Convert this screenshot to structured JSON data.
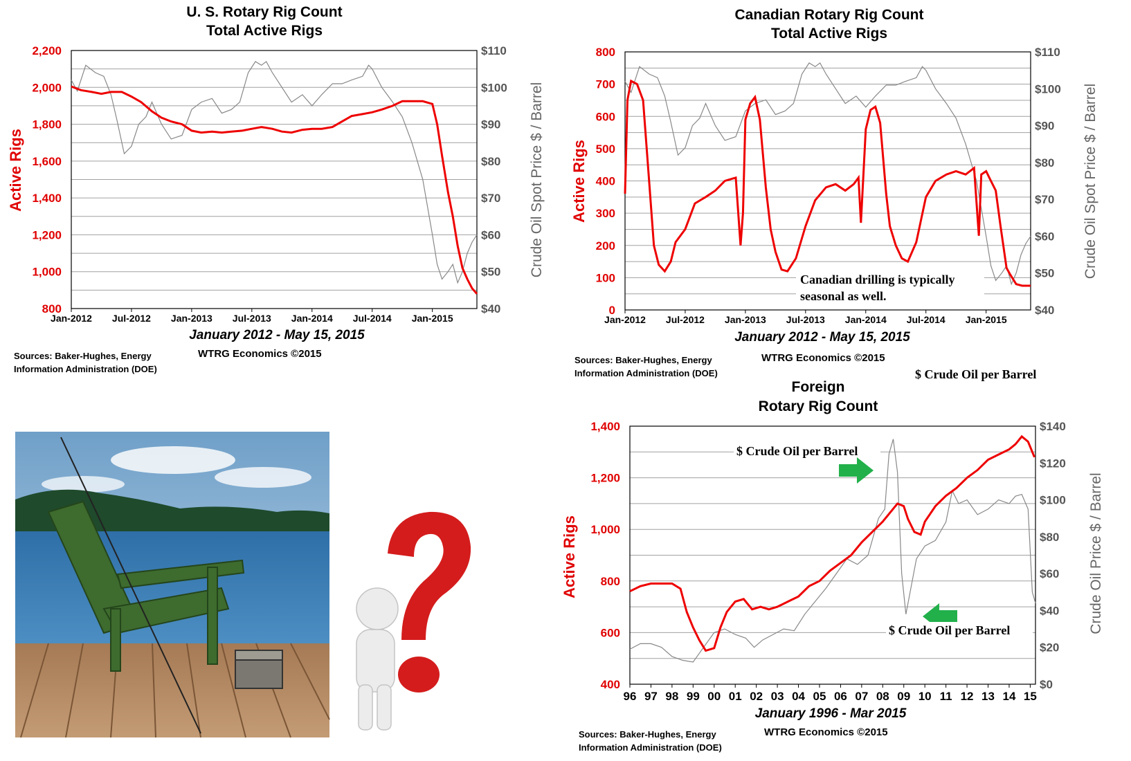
{
  "colors": {
    "rigs": "#ee0000",
    "oil": "#888888",
    "grid": "#a0a0a0",
    "arrow": "#22b04b"
  },
  "us": {
    "title_line1": "U. S. Rotary Rig Count",
    "title_line2": "Total Active Rigs",
    "ylabel": "Active Rigs",
    "y2label": "Crude Oil Spot Price $ / Barrel",
    "period": "January 2012 - May 15, 2015",
    "source_line1": "Sources: Baker-Hughes, Energy",
    "source_line2": "Information Administration (DOE)",
    "credit": "WTRG Economics  ©2015",
    "y_ticks": [
      "800",
      "1,000",
      "1,200",
      "1,400",
      "1,600",
      "1,800",
      "2,000",
      "2,200"
    ],
    "y2_ticks": [
      "$40",
      "$50",
      "$60",
      "$70",
      "$80",
      "$90",
      "$100",
      "$110"
    ],
    "x_ticks": [
      "Jan-2012",
      "Jul-2012",
      "Jan-2013",
      "Jul-2013",
      "Jan-2014",
      "Jul-2014",
      "Jan-2015"
    ]
  },
  "canada": {
    "title_line1": "Canadian Rotary Rig Count",
    "title_line2": "Total Active Rigs",
    "ylabel": "Active Rigs",
    "y2label": "Crude Oil Spot Price $ / Barrel",
    "period": "January 2012 - May 15, 2015",
    "source_line1": "Sources: Baker-Hughes, Energy",
    "source_line2": "Information Administration (DOE)",
    "credit": "WTRG Economics  ©2015",
    "annotation_line1": "Canadian drilling is typically",
    "annotation_line2": "seasonal as well.",
    "y_ticks": [
      "0",
      "100",
      "200",
      "300",
      "400",
      "500",
      "600",
      "700",
      "800"
    ],
    "y2_ticks": [
      "$40",
      "$50",
      "$60",
      "$70",
      "$80",
      "$90",
      "$100",
      "$110"
    ],
    "x_ticks": [
      "Jan-2012",
      "Jul-2012",
      "Jan-2013",
      "Jul-2013",
      "Jan-2014",
      "Jul-2014",
      "Jan-2015"
    ]
  },
  "foreign": {
    "legend_oil": "$ Crude Oil per Barrel",
    "title_line1": "Foreign",
    "title_line2": "Rotary Rig Count",
    "ylabel": "Active Rigs",
    "y2label": "Crude Oil Price $ / Barrel",
    "period": "January 1996 - Mar 2015",
    "source_line1": "Sources: Baker-Hughes, Energy",
    "source_line2": "Information Administration (DOE)",
    "credit": "WTRG Economics  ©2015",
    "annotation_top": "$ Crude Oil per Barrel",
    "annotation_bottom": "$ Crude Oil per Barrel",
    "y_ticks": [
      "400",
      "600",
      "800",
      "1,000",
      "1,200",
      "1,400"
    ],
    "y2_ticks": [
      "$0",
      "$20",
      "$40",
      "$60",
      "$80",
      "$100",
      "$120",
      "$140"
    ],
    "x_ticks": [
      "96",
      "97",
      "98",
      "99",
      "00",
      "01",
      "02",
      "03",
      "04",
      "05",
      "06",
      "07",
      "08",
      "09",
      "10",
      "11",
      "12",
      "13",
      "14",
      "15"
    ]
  },
  "chart_data": [
    {
      "type": "line",
      "title": "U. S. Rotary Rig Count Total Active Rigs",
      "ylabel": "Active Rigs",
      "y2label": "Crude Oil Spot Price $ / Barrel",
      "ylim": [
        800,
        2200
      ],
      "y2lim": [
        40,
        110
      ],
      "xlim": [
        2012.0,
        2015.37
      ],
      "x_units": "year",
      "grid": true,
      "series": [
        {
          "name": "Active Rigs",
          "axis": "left",
          "x": [
            2012.0,
            2012.08,
            2012.17,
            2012.25,
            2012.33,
            2012.42,
            2012.5,
            2012.58,
            2012.67,
            2012.75,
            2012.83,
            2012.92,
            2013.0,
            2013.08,
            2013.17,
            2013.25,
            2013.33,
            2013.42,
            2013.5,
            2013.58,
            2013.67,
            2013.75,
            2013.83,
            2013.92,
            2014.0,
            2014.08,
            2014.17,
            2014.25,
            2014.33,
            2014.42,
            2014.5,
            2014.58,
            2014.67,
            2014.75,
            2014.83,
            2014.92,
            2015.0,
            2015.04,
            2015.08,
            2015.13,
            2015.17,
            2015.21,
            2015.25,
            2015.29,
            2015.33,
            2015.37
          ],
          "y": [
            2005,
            1985,
            1975,
            1965,
            1975,
            1975,
            1950,
            1920,
            1870,
            1835,
            1815,
            1800,
            1765,
            1755,
            1760,
            1755,
            1760,
            1765,
            1775,
            1785,
            1775,
            1760,
            1755,
            1770,
            1775,
            1775,
            1785,
            1815,
            1845,
            1855,
            1865,
            1880,
            1900,
            1925,
            1925,
            1925,
            1910,
            1800,
            1630,
            1430,
            1300,
            1140,
            1020,
            960,
            910,
            880
          ]
        },
        {
          "name": "Crude Oil Spot Price $ / Barrel",
          "axis": "right",
          "x": [
            2012.0,
            2012.05,
            2012.12,
            2012.2,
            2012.27,
            2012.33,
            2012.38,
            2012.44,
            2012.5,
            2012.56,
            2012.62,
            2012.67,
            2012.75,
            2012.83,
            2012.92,
            2013.0,
            2013.08,
            2013.17,
            2013.25,
            2013.33,
            2013.4,
            2013.47,
            2013.53,
            2013.58,
            2013.62,
            2013.67,
            2013.75,
            2013.83,
            2013.92,
            2014.0,
            2014.08,
            2014.17,
            2014.25,
            2014.33,
            2014.42,
            2014.47,
            2014.5,
            2014.58,
            2014.67,
            2014.75,
            2014.83,
            2014.92,
            2015.0,
            2015.04,
            2015.08,
            2015.13,
            2015.17,
            2015.21,
            2015.25,
            2015.29,
            2015.33,
            2015.37
          ],
          "y": [
            102,
            99,
            106,
            104,
            103,
            98,
            91,
            82,
            84,
            90,
            92,
            96,
            90,
            86,
            87,
            94,
            96,
            97,
            93,
            94,
            96,
            104,
            107,
            106,
            107,
            104,
            100,
            96,
            98,
            95,
            98,
            101,
            101,
            102,
            103,
            106,
            105,
            100,
            96,
            92,
            85,
            75,
            60,
            52,
            48,
            50,
            52,
            47,
            50,
            55,
            58,
            60
          ]
        }
      ]
    },
    {
      "type": "line",
      "title": "Canadian Rotary Rig Count Total Active Rigs",
      "ylabel": "Active Rigs",
      "y2label": "Crude Oil Spot Price $ / Barrel",
      "ylim": [
        0,
        800
      ],
      "y2lim": [
        40,
        110
      ],
      "xlim": [
        2012.0,
        2015.37
      ],
      "x_units": "year",
      "grid": true,
      "series": [
        {
          "name": "Active Rigs",
          "axis": "left",
          "x": [
            2012.0,
            2012.02,
            2012.05,
            2012.1,
            2012.15,
            2012.2,
            2012.24,
            2012.28,
            2012.33,
            2012.38,
            2012.42,
            2012.5,
            2012.58,
            2012.67,
            2012.75,
            2012.83,
            2012.92,
            2012.96,
            2012.98,
            2013.0,
            2013.04,
            2013.08,
            2013.12,
            2013.17,
            2013.21,
            2013.25,
            2013.3,
            2013.35,
            2013.42,
            2013.5,
            2013.58,
            2013.67,
            2013.75,
            2013.83,
            2013.9,
            2013.94,
            2013.96,
            2014.0,
            2014.04,
            2014.08,
            2014.12,
            2014.17,
            2014.2,
            2014.25,
            2014.3,
            2014.35,
            2014.42,
            2014.5,
            2014.58,
            2014.67,
            2014.75,
            2014.83,
            2014.9,
            2014.94,
            2014.96,
            2015.0,
            2015.04,
            2015.08,
            2015.12,
            2015.17,
            2015.2,
            2015.25,
            2015.3,
            2015.37
          ],
          "y": [
            360,
            650,
            710,
            700,
            650,
            400,
            200,
            140,
            120,
            150,
            210,
            250,
            330,
            350,
            370,
            400,
            410,
            200,
            300,
            590,
            640,
            660,
            590,
            380,
            250,
            180,
            125,
            120,
            160,
            260,
            340,
            380,
            390,
            370,
            390,
            410,
            270,
            560,
            620,
            630,
            580,
            360,
            260,
            200,
            160,
            150,
            210,
            350,
            400,
            420,
            430,
            420,
            440,
            230,
            420,
            430,
            400,
            370,
            260,
            130,
            110,
            80,
            75,
            75
          ]
        },
        {
          "name": "Crude Oil Spot Price $ / Barrel",
          "axis": "right",
          "x": [
            2012.0,
            2012.05,
            2012.12,
            2012.2,
            2012.27,
            2012.33,
            2012.38,
            2012.44,
            2012.5,
            2012.56,
            2012.62,
            2012.67,
            2012.75,
            2012.83,
            2012.92,
            2013.0,
            2013.08,
            2013.17,
            2013.25,
            2013.33,
            2013.4,
            2013.47,
            2013.53,
            2013.58,
            2013.62,
            2013.67,
            2013.75,
            2013.83,
            2013.92,
            2014.0,
            2014.08,
            2014.17,
            2014.25,
            2014.33,
            2014.42,
            2014.47,
            2014.5,
            2014.58,
            2014.67,
            2014.75,
            2014.83,
            2014.92,
            2015.0,
            2015.04,
            2015.08,
            2015.13,
            2015.17,
            2015.21,
            2015.25,
            2015.29,
            2015.33,
            2015.37
          ],
          "y": [
            102,
            99,
            106,
            104,
            103,
            98,
            91,
            82,
            84,
            90,
            92,
            96,
            90,
            86,
            87,
            94,
            96,
            97,
            93,
            94,
            96,
            104,
            107,
            106,
            107,
            104,
            100,
            96,
            98,
            95,
            98,
            101,
            101,
            102,
            103,
            106,
            105,
            100,
            96,
            92,
            85,
            75,
            60,
            52,
            48,
            50,
            52,
            47,
            50,
            55,
            58,
            60
          ]
        }
      ]
    },
    {
      "type": "line",
      "title": "Foreign Rotary Rig Count",
      "ylabel": "Active Rigs",
      "y2label": "Crude Oil Price $ / Barrel",
      "ylim": [
        400,
        1400
      ],
      "y2lim": [
        0,
        140
      ],
      "xlim": [
        1996.0,
        2015.25
      ],
      "x_units": "year",
      "grid": true,
      "series": [
        {
          "name": "Active Rigs",
          "axis": "left",
          "x": [
            1996.0,
            1996.5,
            1997.0,
            1997.5,
            1998.0,
            1998.4,
            1998.7,
            1999.0,
            1999.3,
            1999.6,
            2000.0,
            2000.3,
            2000.6,
            2001.0,
            2001.4,
            2001.8,
            2002.2,
            2002.6,
            2003.0,
            2003.5,
            2004.0,
            2004.5,
            2005.0,
            2005.5,
            2006.0,
            2006.5,
            2007.0,
            2007.5,
            2008.0,
            2008.4,
            2008.7,
            2009.0,
            2009.2,
            2009.5,
            2009.8,
            2010.0,
            2010.5,
            2011.0,
            2011.5,
            2012.0,
            2012.5,
            2013.0,
            2013.5,
            2014.0,
            2014.3,
            2014.6,
            2014.9,
            2015.2
          ],
          "y": [
            760,
            780,
            790,
            790,
            790,
            770,
            680,
            620,
            570,
            530,
            540,
            620,
            680,
            720,
            730,
            690,
            700,
            690,
            700,
            720,
            740,
            780,
            800,
            840,
            870,
            900,
            950,
            990,
            1030,
            1070,
            1100,
            1090,
            1040,
            990,
            980,
            1030,
            1090,
            1130,
            1160,
            1200,
            1230,
            1270,
            1290,
            1310,
            1330,
            1360,
            1340,
            1280
          ]
        },
        {
          "name": "$ Crude Oil per Barrel",
          "axis": "right",
          "x": [
            1996.0,
            1996.5,
            1997.0,
            1997.5,
            1998.0,
            1998.5,
            1999.0,
            1999.5,
            2000.0,
            2000.5,
            2001.0,
            2001.5,
            2001.9,
            2002.3,
            2002.8,
            2003.3,
            2003.8,
            2004.3,
            2004.8,
            2005.3,
            2005.8,
            2006.3,
            2006.8,
            2007.3,
            2007.8,
            2008.1,
            2008.3,
            2008.5,
            2008.7,
            2008.9,
            2009.1,
            2009.3,
            2009.6,
            2010.0,
            2010.5,
            2011.0,
            2011.3,
            2011.6,
            2012.0,
            2012.5,
            2013.0,
            2013.5,
            2014.0,
            2014.3,
            2014.6,
            2014.9,
            2015.1,
            2015.25
          ],
          "y": [
            19,
            22,
            22,
            20,
            15,
            13,
            12,
            20,
            28,
            30,
            27,
            25,
            20,
            24,
            27,
            30,
            29,
            38,
            45,
            52,
            60,
            68,
            65,
            70,
            90,
            95,
            125,
            133,
            115,
            60,
            38,
            50,
            68,
            75,
            78,
            88,
            105,
            98,
            100,
            92,
            95,
            100,
            98,
            102,
            103,
            95,
            50,
            44
          ]
        }
      ]
    }
  ]
}
